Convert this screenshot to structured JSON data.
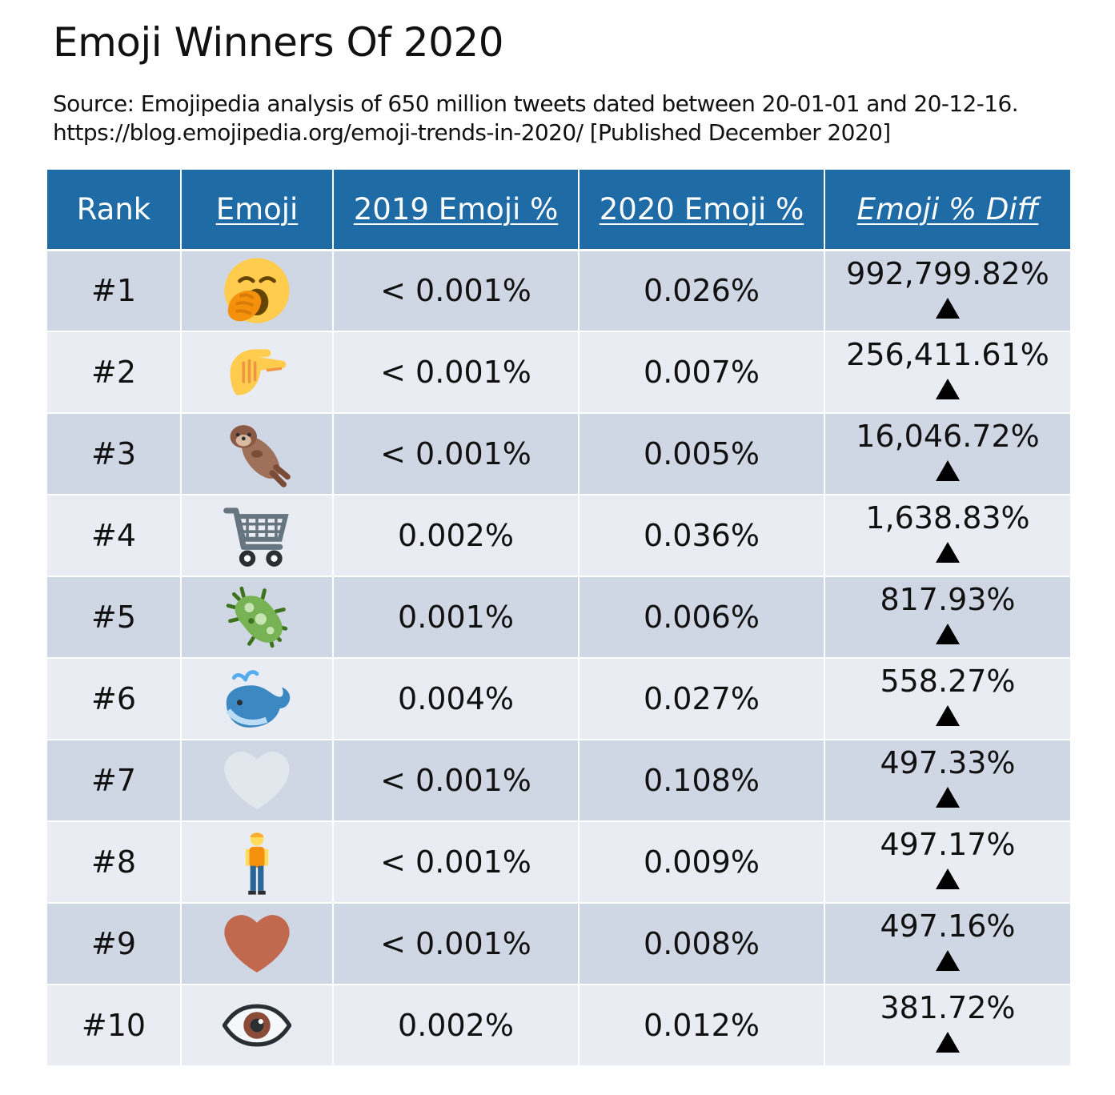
{
  "title": "Emoji Winners Of 2020",
  "source_line1": "Source: Emojipedia analysis of 650 million tweets dated between 20-01-01 and 20-12-16.",
  "source_line2": "https://blog.emojipedia.org/emoji-trends-in-2020/ [Published December 2020]",
  "columns": {
    "rank": "Rank",
    "emoji": "Emoji",
    "y2019": "2019 Emoji %",
    "y2020": "2020 Emoji %",
    "diff": "Emoji % Diff"
  },
  "colors": {
    "header": "#1f6ba6",
    "row_odd": "#cfd7e4",
    "row_even": "#e9ecf2"
  },
  "rows": [
    {
      "rank": "#1",
      "emoji": "yawning-face-icon",
      "y2019": "< 0.001%",
      "y2020": "0.026%",
      "diff": "992,799.82%",
      "trend": "up"
    },
    {
      "rank": "#2",
      "emoji": "pinching-hand-icon",
      "y2019": "< 0.001%",
      "y2020": "0.007%",
      "diff": "256,411.61%",
      "trend": "up"
    },
    {
      "rank": "#3",
      "emoji": "otter-icon",
      "y2019": "< 0.001%",
      "y2020": "0.005%",
      "diff": "16,046.72%",
      "trend": "up"
    },
    {
      "rank": "#4",
      "emoji": "shopping-cart-icon",
      "y2019": "0.002%",
      "y2020": "0.036%",
      "diff": "1,638.83%",
      "trend": "up"
    },
    {
      "rank": "#5",
      "emoji": "microbe-icon",
      "y2019": "0.001%",
      "y2020": "0.006%",
      "diff": "817.93%",
      "trend": "up"
    },
    {
      "rank": "#6",
      "emoji": "spouting-whale-icon",
      "y2019": "0.004%",
      "y2020": "0.027%",
      "diff": "558.27%",
      "trend": "up"
    },
    {
      "rank": "#7",
      "emoji": "white-heart-icon",
      "y2019": "< 0.001%",
      "y2020": "0.108%",
      "diff": "497.33%",
      "trend": "up"
    },
    {
      "rank": "#8",
      "emoji": "person-standing-icon",
      "y2019": "< 0.001%",
      "y2020": "0.009%",
      "diff": "497.17%",
      "trend": "up"
    },
    {
      "rank": "#9",
      "emoji": "brown-heart-icon",
      "y2019": "< 0.001%",
      "y2020": "0.008%",
      "diff": "497.16%",
      "trend": "up"
    },
    {
      "rank": "#10",
      "emoji": "eye-icon",
      "y2019": "0.002%",
      "y2020": "0.012%",
      "diff": "381.72%",
      "trend": "up"
    }
  ]
}
